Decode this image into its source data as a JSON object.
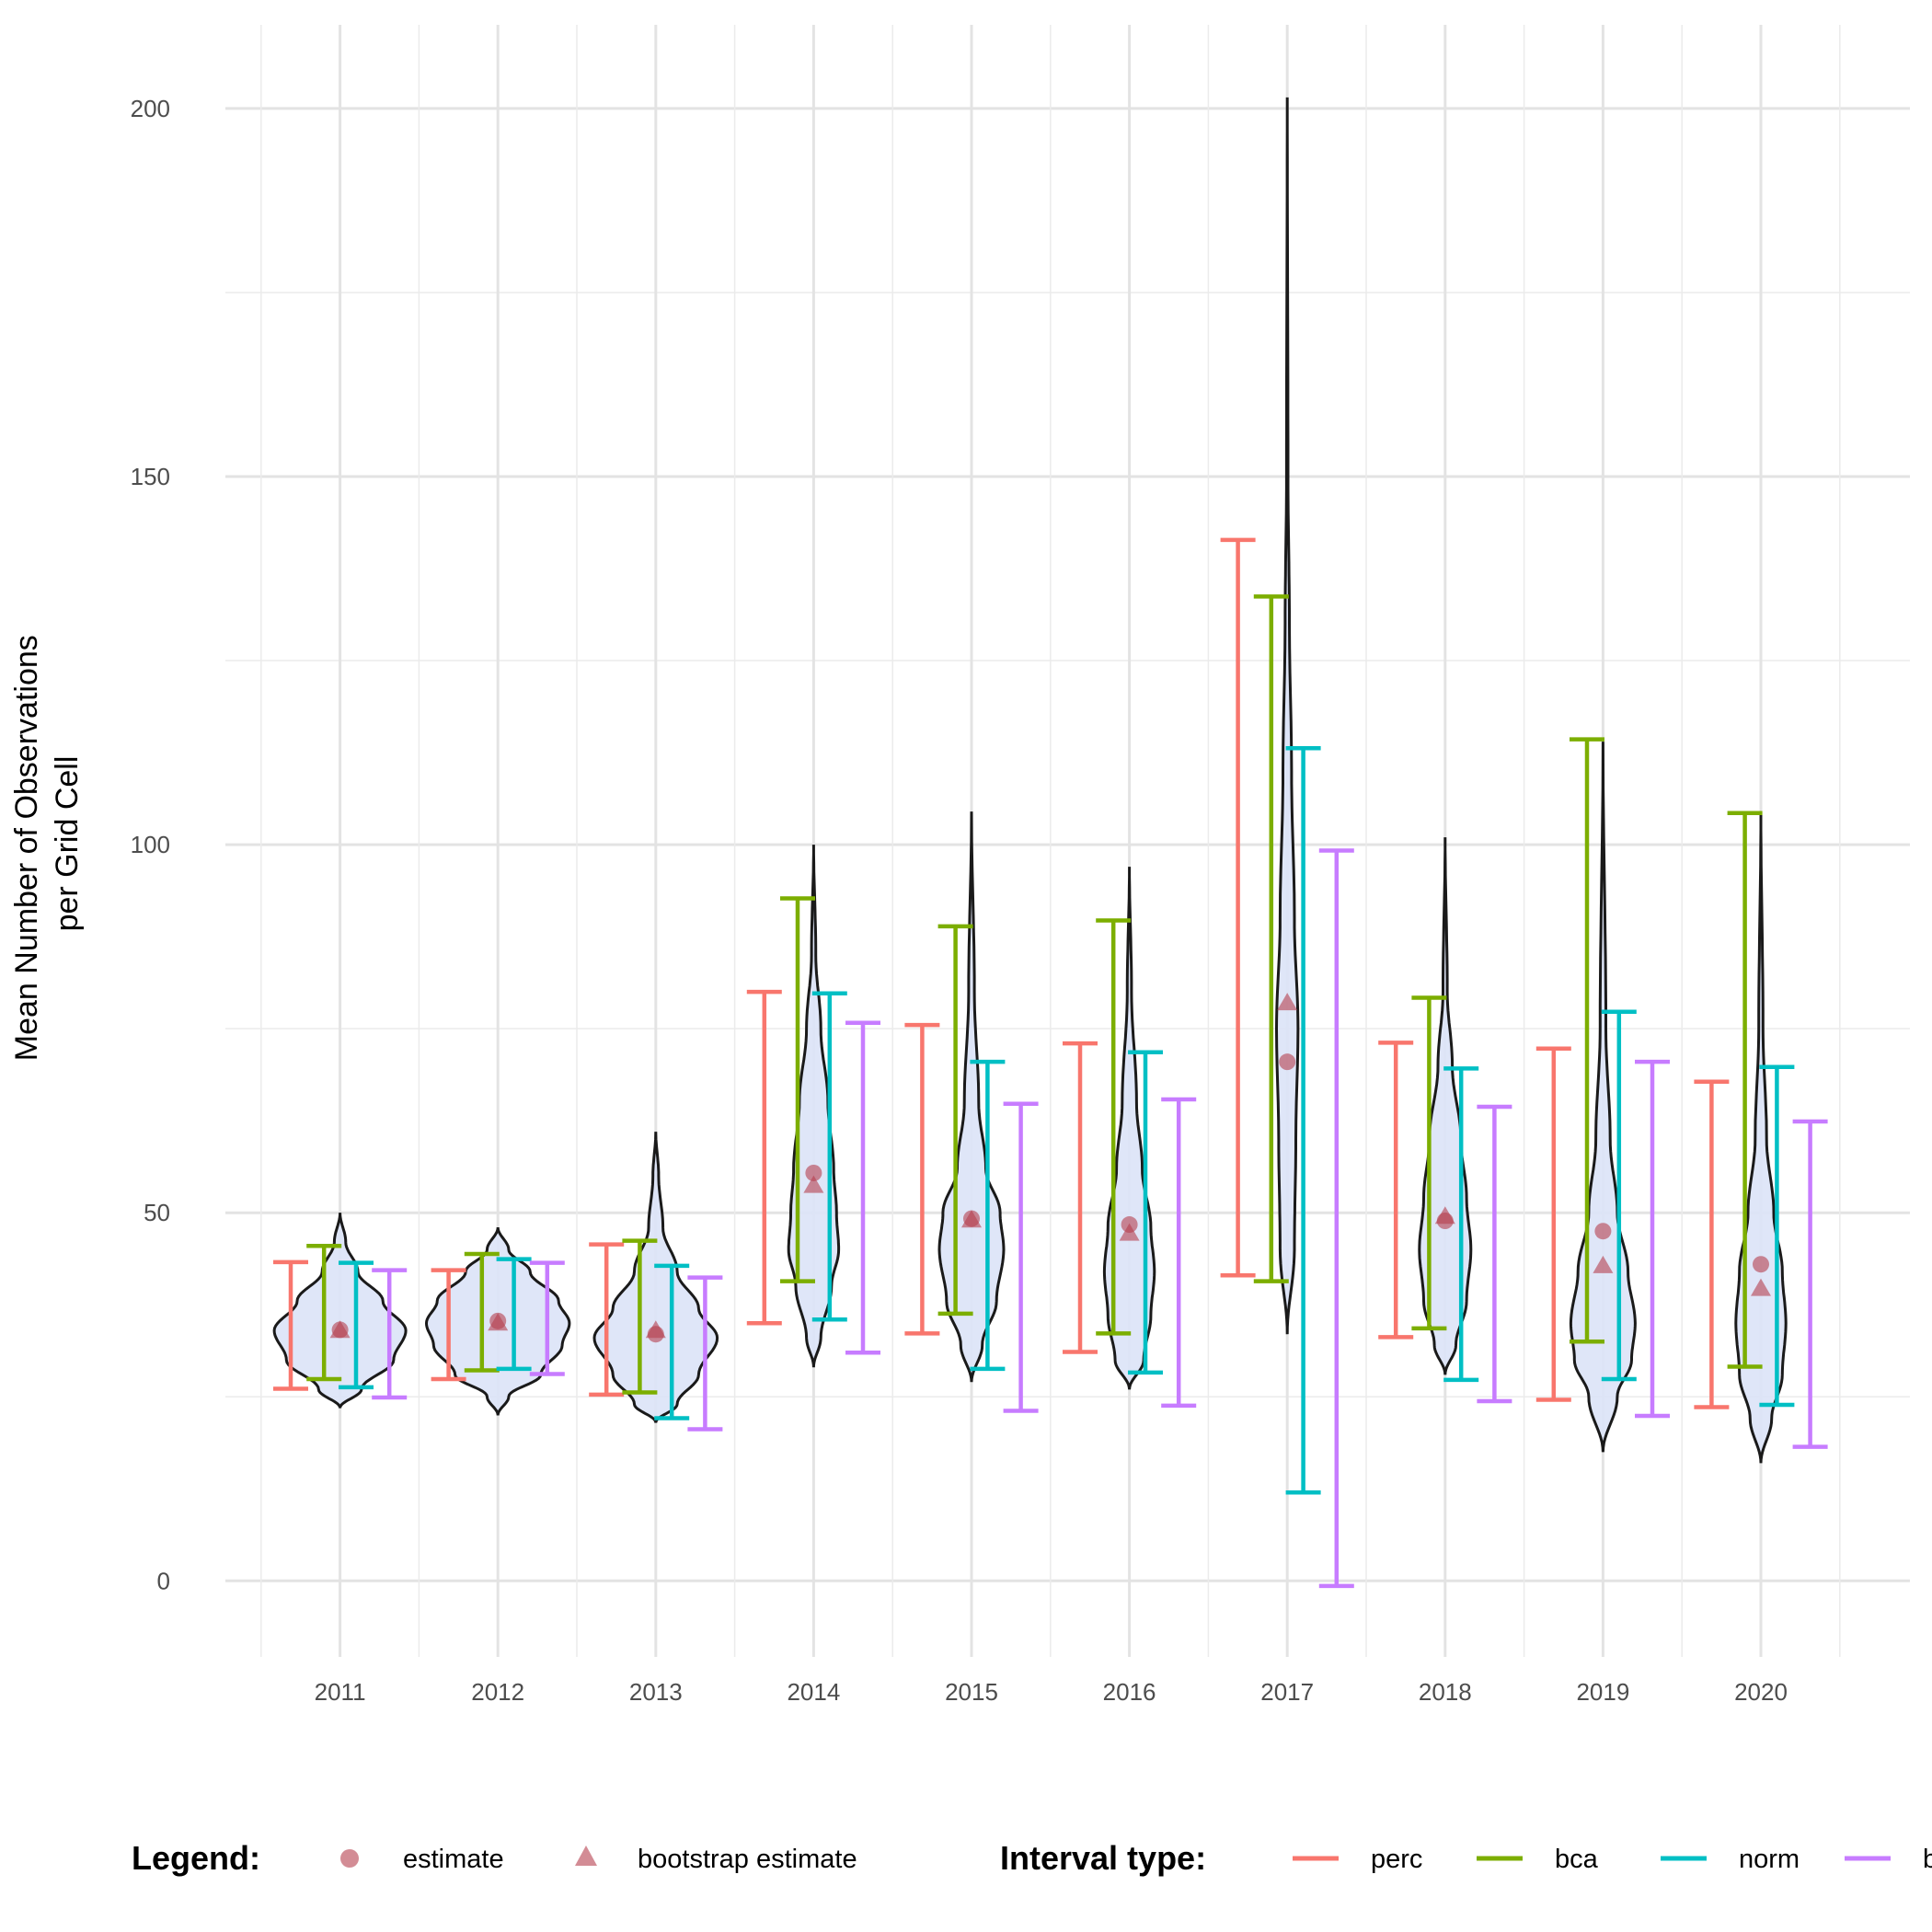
{
  "chart_data": {
    "type": "violin-errorbar",
    "ylabel_lines": [
      "Mean Number of Observations",
      "per Grid Cell"
    ],
    "xlabel": "",
    "ylim": [
      -10,
      211
    ],
    "y_ticks": [
      0,
      50,
      100,
      150,
      200
    ],
    "grid": true,
    "legend_position": "bottom",
    "categories": [
      "2011",
      "2012",
      "2013",
      "2014",
      "2015",
      "2016",
      "2017",
      "2018",
      "2019",
      "2020"
    ],
    "point_legend": {
      "title": "Legend:",
      "items": [
        {
          "label": "estimate",
          "shape": "circle"
        },
        {
          "label": "bootstrap estimate",
          "shape": "triangle"
        }
      ],
      "color": "#b5404e"
    },
    "interval_legend": {
      "title": "Interval type:",
      "items": [
        {
          "label": "perc",
          "color": "#f8766d"
        },
        {
          "label": "bca",
          "color": "#7cae00"
        },
        {
          "label": "norm",
          "color": "#00bfc4"
        },
        {
          "label": "basic",
          "color": "#c77cff"
        }
      ]
    },
    "estimate": [
      34.1,
      35.3,
      33.5,
      55.4,
      49.2,
      48.4,
      70.5,
      48.9,
      47.5,
      43.0
    ],
    "bootstrap_estimate": [
      34.0,
      35.0,
      34.0,
      53.7,
      49.0,
      47.2,
      78.5,
      49.5,
      42.8,
      39.7
    ],
    "intervals": {
      "perc": [
        [
          26.1,
          43.3
        ],
        [
          27.4,
          42.2
        ],
        [
          25.3,
          45.7
        ],
        [
          35.0,
          80.0
        ],
        [
          33.6,
          75.5
        ],
        [
          31.1,
          73.0
        ],
        [
          41.5,
          141.4
        ],
        [
          33.1,
          73.1
        ],
        [
          24.6,
          72.3
        ],
        [
          23.6,
          67.8
        ]
      ],
      "bca": [
        [
          27.4,
          45.5
        ],
        [
          28.6,
          44.4
        ],
        [
          25.6,
          46.2
        ],
        [
          40.7,
          92.7
        ],
        [
          36.3,
          88.9
        ],
        [
          33.6,
          89.7
        ],
        [
          40.7,
          133.7
        ],
        [
          34.3,
          79.2
        ],
        [
          32.5,
          114.3
        ],
        [
          29.1,
          104.3
        ]
      ],
      "norm": [
        [
          26.3,
          43.2
        ],
        [
          28.8,
          43.7
        ],
        [
          22.1,
          42.8
        ],
        [
          35.5,
          79.8
        ],
        [
          28.8,
          70.5
        ],
        [
          28.3,
          71.8
        ],
        [
          12.0,
          113.1
        ],
        [
          27.3,
          69.6
        ],
        [
          27.4,
          77.3
        ],
        [
          23.9,
          69.8
        ]
      ],
      "basic": [
        [
          24.9,
          42.2
        ],
        [
          28.1,
          43.2
        ],
        [
          20.6,
          41.2
        ],
        [
          31.0,
          75.8
        ],
        [
          23.1,
          64.8
        ],
        [
          23.8,
          65.4
        ],
        [
          -0.7,
          99.2
        ],
        [
          24.4,
          64.4
        ],
        [
          22.4,
          70.5
        ],
        [
          18.2,
          62.4
        ]
      ]
    },
    "violin_density": [
      [
        [
          23.5,
          0
        ],
        [
          26,
          0.3
        ],
        [
          30,
          0.75
        ],
        [
          34,
          0.92
        ],
        [
          38,
          0.6
        ],
        [
          42,
          0.25
        ],
        [
          46,
          0.08
        ],
        [
          50,
          0
        ]
      ],
      [
        [
          22.5,
          0
        ],
        [
          25,
          0.15
        ],
        [
          28,
          0.6
        ],
        [
          32,
          0.9
        ],
        [
          35,
          1.0
        ],
        [
          38,
          0.85
        ],
        [
          42,
          0.45
        ],
        [
          45,
          0.15
        ],
        [
          48,
          0
        ]
      ],
      [
        [
          21.5,
          0
        ],
        [
          24,
          0.3
        ],
        [
          28,
          0.6
        ],
        [
          33,
          0.86
        ],
        [
          37,
          0.6
        ],
        [
          42,
          0.3
        ],
        [
          48,
          0.1
        ],
        [
          55,
          0.04
        ],
        [
          61,
          0
        ]
      ],
      [
        [
          29,
          0
        ],
        [
          33,
          0.1
        ],
        [
          40,
          0.25
        ],
        [
          45,
          0.35
        ],
        [
          50,
          0.32
        ],
        [
          56,
          0.28
        ],
        [
          65,
          0.2
        ],
        [
          75,
          0.1
        ],
        [
          85,
          0.03
        ],
        [
          100,
          0
        ]
      ],
      [
        [
          27,
          0
        ],
        [
          32,
          0.15
        ],
        [
          38,
          0.35
        ],
        [
          45,
          0.45
        ],
        [
          50,
          0.4
        ],
        [
          56,
          0.2
        ],
        [
          65,
          0.1
        ],
        [
          80,
          0.04
        ],
        [
          104.5,
          0
        ]
      ],
      [
        [
          26,
          0
        ],
        [
          30,
          0.2
        ],
        [
          36,
          0.3
        ],
        [
          42,
          0.35
        ],
        [
          48,
          0.3
        ],
        [
          56,
          0.18
        ],
        [
          65,
          0.1
        ],
        [
          80,
          0.03
        ],
        [
          97,
          0
        ]
      ],
      [
        [
          33.5,
          0
        ],
        [
          45,
          0.1
        ],
        [
          60,
          0.12
        ],
        [
          75,
          0.15
        ],
        [
          90,
          0.1
        ],
        [
          110,
          0.06
        ],
        [
          130,
          0.03
        ],
        [
          150,
          0.01
        ],
        [
          201.5,
          0
        ]
      ],
      [
        [
          28,
          0
        ],
        [
          32,
          0.15
        ],
        [
          38,
          0.3
        ],
        [
          45,
          0.36
        ],
        [
          52,
          0.3
        ],
        [
          60,
          0.22
        ],
        [
          70,
          0.1
        ],
        [
          80,
          0.03
        ],
        [
          101,
          0
        ]
      ],
      [
        [
          17.5,
          0
        ],
        [
          25,
          0.2
        ],
        [
          30,
          0.4
        ],
        [
          35,
          0.45
        ],
        [
          42,
          0.35
        ],
        [
          50,
          0.2
        ],
        [
          60,
          0.1
        ],
        [
          75,
          0.04
        ],
        [
          114,
          0
        ]
      ],
      [
        [
          16,
          0
        ],
        [
          22,
          0.15
        ],
        [
          28,
          0.3
        ],
        [
          35,
          0.35
        ],
        [
          42,
          0.3
        ],
        [
          50,
          0.18
        ],
        [
          60,
          0.08
        ],
        [
          75,
          0.03
        ],
        [
          104.5,
          0
        ]
      ]
    ],
    "violin_fill": "#dbe3f7"
  }
}
